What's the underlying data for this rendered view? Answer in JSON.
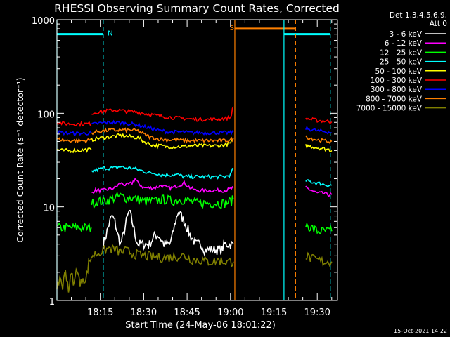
{
  "chart_data": {
    "type": "line",
    "title": "RHESSI Observing Summary Count Rates, Corrected",
    "xlabel": "Start Time (24-May-06 18:01:22)",
    "ylabel": "Corrected Count Rate (s⁻¹ detector⁻¹)",
    "yscale": "log",
    "ylim": [
      1,
      1000
    ],
    "xlim_minutes": [
      0,
      97
    ],
    "x_tick_minutes": [
      15,
      30,
      45,
      60,
      75,
      90
    ],
    "x_tick_labels": [
      "18:15",
      "18:30",
      "18:45",
      "19:00",
      "19:15",
      "19:30"
    ],
    "y_tick_values": [
      1,
      10,
      100,
      1000
    ],
    "y_tick_labels": [
      "1",
      "10",
      "100",
      "1000"
    ],
    "timestamp": "15-Oct-2021 14:22",
    "legend": {
      "header": [
        "Det 1,3,4,5,6,9,",
        "Att 0"
      ],
      "placement": "right"
    },
    "flags": [
      {
        "label": "N",
        "color": "#00ffff",
        "segments": [
          [
            0,
            16
          ],
          [
            78.5,
            94.5
          ]
        ],
        "level": 700
      },
      {
        "label": "S",
        "color": "#ff8000",
        "segments": [
          [
            61.5,
            82.5
          ]
        ],
        "level": 800
      }
    ],
    "boundaries": [
      {
        "minute": 0,
        "color": "#00ffff",
        "style": "solid"
      },
      {
        "minute": 16,
        "color": "#00ffff",
        "style": "dashed"
      },
      {
        "minute": 61.5,
        "color": "#ff8000",
        "style": "solid"
      },
      {
        "minute": 82.5,
        "color": "#ff8000",
        "style": "dashed"
      },
      {
        "minute": 78.5,
        "color": "#00ffff",
        "style": "solid"
      },
      {
        "minute": 94.5,
        "color": "#00ffff",
        "style": "dashed"
      }
    ],
    "series": [
      {
        "name": "3 - 6 keV",
        "color": "#ffffff",
        "segments": [
          {
            "x": [
              16,
              17,
              18,
              19,
              20,
              21,
              22,
              23,
              24,
              25,
              26,
              27,
              28,
              29,
              30,
              31,
              32,
              33,
              34,
              35,
              36,
              37,
              38,
              39,
              40,
              41,
              42,
              43,
              44,
              45,
              46,
              47,
              48,
              49,
              50,
              51,
              52,
              53,
              54,
              55,
              56,
              57,
              58,
              59,
              60,
              61
            ],
            "y": [
              4,
              5,
              6.5,
              8,
              7,
              5,
              4,
              5,
              7,
              9,
              7,
              5,
              4,
              4,
              4,
              4,
              4,
              4.5,
              5,
              5,
              4.5,
              4,
              4,
              4,
              5,
              7,
              9,
              8,
              7,
              6,
              5,
              4.5,
              4,
              4,
              4,
              3.5,
              3.5,
              3.5,
              3.5,
              3.5,
              3.5,
              3.5,
              4,
              4,
              4,
              4
            ]
          }
        ]
      },
      {
        "name": "6 - 12 keV",
        "color": "#ff00ff",
        "segments": [
          {
            "x": [
              12,
              13,
              14,
              16,
              18,
              20,
              22,
              24,
              26,
              27,
              28,
              30,
              32,
              34,
              36,
              38,
              40,
              42,
              44,
              46,
              48,
              50,
              52,
              54,
              56,
              58,
              60,
              61
            ],
            "y": [
              14,
              15,
              15,
              15,
              15.5,
              16,
              18,
              17,
              18,
              20,
              18,
              16,
              16,
              16,
              17,
              16,
              16,
              17,
              18,
              16,
              15,
              15,
              15,
              15,
              15,
              15,
              15.5,
              16
            ]
          },
          {
            "x": [
              86,
              87,
              88,
              90,
              92,
              94,
              95
            ],
            "y": [
              16,
              15.5,
              15,
              14,
              14,
              13.5,
              13.5
            ]
          }
        ]
      },
      {
        "name": "12 - 25 keV",
        "color": "#00ff00",
        "segments": [
          {
            "x": [
              0,
              2,
              4,
              6,
              8,
              10,
              11.9
            ],
            "y": [
              6,
              6,
              6,
              6,
              6,
              6,
              6
            ]
          },
          {
            "x": [
              12,
              14,
              16,
              18,
              20,
              22,
              24,
              26,
              28,
              30,
              32,
              34,
              36,
              38,
              40,
              42,
              44,
              46,
              48,
              50,
              52,
              54,
              56,
              58,
              60,
              61
            ],
            "y": [
              11,
              11.5,
              11.5,
              12,
              12.5,
              13,
              12.5,
              12.5,
              12,
              11.5,
              11.5,
              11.5,
              12,
              12,
              11.5,
              12,
              12,
              11.5,
              11,
              11,
              11,
              11,
              11,
              11,
              11.5,
              12
            ]
          },
          {
            "x": [
              86,
              88,
              90,
              92,
              94,
              95
            ],
            "y": [
              6.5,
              6,
              5.5,
              5.5,
              5.5,
              5.5
            ]
          }
        ]
      },
      {
        "name": "25 - 50 keV",
        "color": "#00ffff",
        "segments": [
          {
            "x": [
              12,
              14,
              16,
              18,
              20,
              22,
              24,
              26,
              28,
              30,
              32,
              34,
              36,
              38,
              40,
              42,
              44,
              46,
              48,
              50,
              52,
              54,
              56,
              58,
              60,
              61
            ],
            "y": [
              24,
              25,
              26,
              26,
              26,
              27,
              26,
              26,
              25,
              24,
              23,
              23,
              22,
              22,
              22,
              22,
              21,
              21,
              21,
              21,
              21,
              21,
              21,
              21,
              22,
              26
            ]
          },
          {
            "x": [
              86,
              88,
              90,
              92,
              94,
              95
            ],
            "y": [
              19,
              18.5,
              18,
              17.5,
              17,
              17
            ]
          }
        ]
      },
      {
        "name": "50 - 100 keV",
        "color": "#ffff00",
        "segments": [
          {
            "x": [
              0,
              2,
              4,
              6,
              8,
              10,
              11.9
            ],
            "y": [
              41,
              40,
              40,
              40,
              40,
              41,
              41
            ]
          },
          {
            "x": [
              12,
              14,
              16,
              18,
              20,
              22,
              24,
              26,
              28,
              30,
              32,
              34,
              36,
              38,
              40,
              42,
              44,
              46,
              48,
              50,
              52,
              54,
              56,
              58,
              60,
              61
            ],
            "y": [
              52,
              54,
              55,
              56,
              57,
              58,
              57,
              56,
              55,
              50,
              47,
              45,
              45,
              44,
              44,
              44,
              44,
              45,
              45,
              45,
              45,
              45,
              45,
              46,
              48,
              52
            ]
          },
          {
            "x": [
              86,
              88,
              90,
              92,
              94,
              95
            ],
            "y": [
              45,
              44,
              43,
              42,
              41,
              40
            ]
          }
        ]
      },
      {
        "name": "100 - 300 keV",
        "color": "#ff0000",
        "segments": [
          {
            "x": [
              0,
              2,
              4,
              6,
              8,
              10,
              11.9
            ],
            "y": [
              80,
              78,
              77,
              77,
              77,
              77,
              78
            ]
          },
          {
            "x": [
              12,
              14,
              16,
              18,
              20,
              22,
              24,
              26,
              28,
              30,
              32,
              34,
              36,
              38,
              40,
              42,
              44,
              46,
              48,
              50,
              52,
              54,
              56,
              58,
              60,
              61
            ],
            "y": [
              100,
              103,
              105,
              107,
              108,
              107,
              105,
              104,
              103,
              100,
              98,
              95,
              93,
              92,
              90,
              89,
              88,
              87,
              86,
              86,
              86,
              86,
              87,
              88,
              90,
              118
            ]
          },
          {
            "x": [
              86,
              88,
              90,
              92,
              94,
              95
            ],
            "y": [
              88,
              86,
              84,
              83,
              82,
              81
            ]
          }
        ]
      },
      {
        "name": "300 - 800 keV",
        "color": "#0000ff",
        "segments": [
          {
            "x": [
              0,
              2,
              4,
              6,
              8,
              10,
              11.9
            ],
            "y": [
              63,
              62,
              61,
              61,
              61,
              61,
              62
            ]
          },
          {
            "x": [
              12,
              14,
              16,
              18,
              20,
              22,
              24,
              26,
              28,
              30,
              32,
              34,
              36,
              38,
              40,
              42,
              44,
              46,
              48,
              50,
              52,
              54,
              56,
              58,
              60,
              61
            ],
            "y": [
              76,
              78,
              79,
              80,
              80,
              79,
              78,
              77,
              75,
              72,
              70,
              67,
              65,
              64,
              63,
              63,
              63,
              62,
              62,
              62,
              62,
              62,
              62,
              62,
              62,
              63
            ]
          },
          {
            "x": [
              86,
              88,
              90,
              92,
              94,
              95
            ],
            "y": [
              69,
              67,
              65,
              64,
              63,
              62
            ]
          }
        ]
      },
      {
        "name": "800 - 7000 keV",
        "color": "#ff8000",
        "segments": [
          {
            "x": [
              0,
              2,
              4,
              6,
              8,
              10,
              11.9
            ],
            "y": [
              53,
              52,
              51,
              51,
              51,
              51,
              52
            ]
          },
          {
            "x": [
              12,
              14,
              16,
              18,
              20,
              22,
              24,
              26,
              28,
              30,
              32,
              34,
              36,
              38,
              40,
              42,
              44,
              46,
              48,
              50,
              52,
              54,
              56,
              58,
              60,
              61
            ],
            "y": [
              62,
              64,
              65,
              66,
              66,
              66,
              66,
              66,
              65,
              60,
              56,
              54,
              53,
              52,
              52,
              52,
              51,
              51,
              51,
              51,
              51,
              51,
              51,
              51,
              52,
              54
            ]
          },
          {
            "x": [
              86,
              88,
              90,
              92,
              94,
              95
            ],
            "y": [
              56,
              54,
              52,
              51,
              50,
              50
            ]
          }
        ]
      },
      {
        "name": "7000 - 15000 keV",
        "color": "#808000",
        "segments": [
          {
            "x": [
              0,
              1,
              2,
              3,
              4,
              5,
              6,
              7,
              8,
              9,
              10,
              11,
              11.9
            ],
            "y": [
              1.2,
              1.8,
              1.4,
              2.1,
              1.3,
              1.9,
              1.5,
              2.3,
              1.4,
              1.8,
              1.6,
              2.5,
              2.8
            ]
          },
          {
            "x": [
              12,
              14,
              16,
              18,
              20,
              22,
              24,
              26,
              28,
              30,
              32,
              34,
              36,
              38,
              40,
              42,
              44,
              46,
              48,
              50,
              52,
              54,
              56,
              58,
              60,
              61
            ],
            "y": [
              3,
              3.2,
              3.4,
              3.6,
              3.5,
              3.3,
              3.4,
              3.2,
              3.1,
              3.0,
              3.0,
              2.9,
              2.9,
              2.9,
              2.9,
              3.0,
              3.0,
              2.8,
              2.7,
              2.7,
              2.6,
              2.6,
              2.7,
              2.6,
              2.6,
              2.6
            ]
          },
          {
            "x": [
              86,
              88,
              90,
              92,
              94,
              95
            ],
            "y": [
              3,
              2.8,
              2.7,
              2.6,
              2.6,
              2.6
            ]
          }
        ]
      }
    ]
  }
}
